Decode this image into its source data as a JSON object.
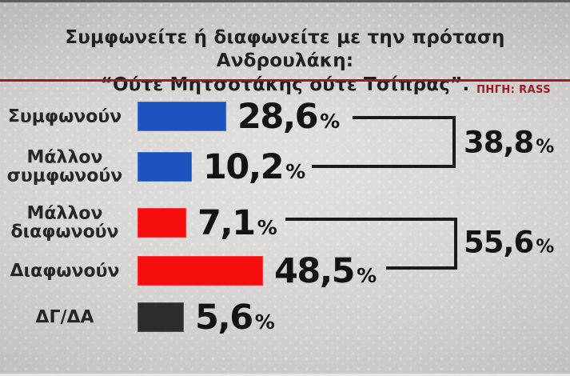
{
  "header": {
    "title_line1": "Συμφωνείτε ή διαφωνείτε με την πρόταση Ανδρουλάκη:",
    "title_line2": "“Ούτε Μητσοτάκης ούτε Τσίπρας”.",
    "source_label": "ΠΗΓΗ: RASS"
  },
  "colors": {
    "agree_blue": "#1c53bd",
    "disagree_red": "#f60d0d",
    "neutral_dark": "#2d2d2d",
    "rule_red": "#a2171e",
    "source_red": "#9e1b21",
    "text_dark": "#141414"
  },
  "chart_data": {
    "type": "bar",
    "orientation": "horizontal",
    "unit": "%",
    "decimal_style": "comma",
    "categories": [
      "Συμφωνούν",
      "Μάλλον συμφωνούν",
      "Μάλλον διαφωνούν",
      "Διαφωνούν",
      "ΔΓ/ΔΑ"
    ],
    "values": [
      28.6,
      10.2,
      7.1,
      48.5,
      5.6
    ],
    "value_labels": [
      "28,6",
      "10,2",
      "7,1",
      "48,5",
      "5,6"
    ],
    "bar_colors": [
      "agree_blue",
      "agree_blue",
      "disagree_red",
      "disagree_red",
      "neutral_dark"
    ],
    "groups": [
      {
        "label": "38,8",
        "value": 38.8,
        "members": [
          "Συμφωνούν",
          "Μάλλον συμφωνούν"
        ]
      },
      {
        "label": "55,6",
        "value": 55.6,
        "members": [
          "Μάλλον διαφωνούν",
          "Διαφωνούν"
        ]
      }
    ]
  }
}
